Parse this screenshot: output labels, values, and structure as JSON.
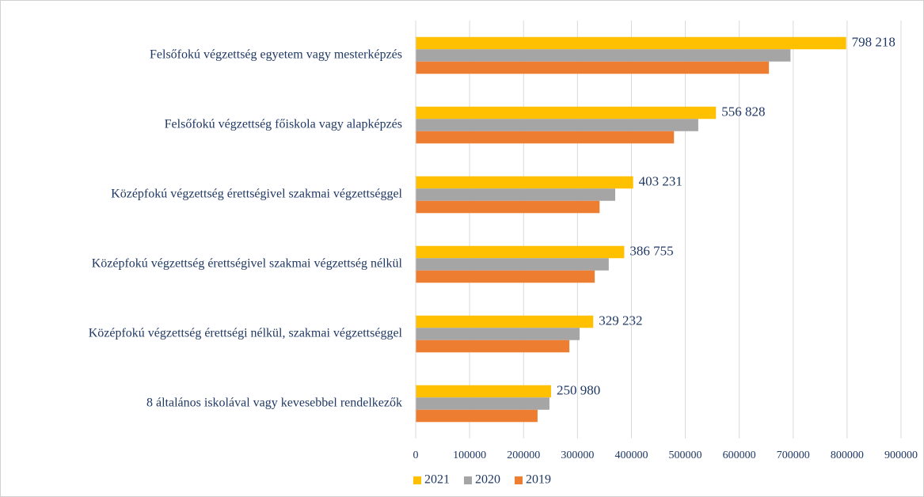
{
  "chart_data": {
    "type": "barh",
    "categories": [
      "Felsőfokú végzettség egyetem vagy mesterképzés",
      "Felsőfokú végzettség főiskola vagy alapképzés",
      "Középfokú végzettség érettségivel szakmai végzettséggel",
      "Középfokú végzettség érettségivel szakmai végzettség nélkül",
      "Középfokú végzettség érettségi nélkül, szakmai végzettséggel",
      "8 általános iskolával vagy kevesebbel rendelkezők"
    ],
    "series": [
      {
        "name": "2021",
        "color": "#ffc000",
        "values": [
          798218,
          556828,
          403231,
          386755,
          329232,
          250980
        ],
        "value_labels": [
          "798 218",
          "556 828",
          "403 231",
          "386 755",
          "329 232",
          "250 980"
        ]
      },
      {
        "name": "2020",
        "color": "#a5a5a5",
        "values": [
          695000,
          524000,
          370000,
          358000,
          304000,
          248000
        ]
      },
      {
        "name": "2019",
        "color": "#ed7d31",
        "values": [
          655000,
          479000,
          341000,
          332000,
          285000,
          226000
        ]
      }
    ],
    "xlim": [
      0,
      900000
    ],
    "xticks": [
      0,
      100000,
      200000,
      300000,
      400000,
      500000,
      600000,
      700000,
      800000,
      900000
    ],
    "grid": true,
    "legend": "bottom"
  }
}
